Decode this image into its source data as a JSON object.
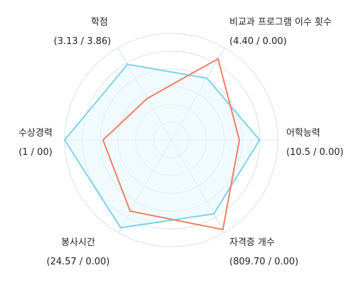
{
  "chart_data": {
    "type": "radar",
    "axes": [
      {
        "name": "학점",
        "value_label": "(3.13 / 3.86)"
      },
      {
        "name": "비교과 프로그램 이수 횟수",
        "value_label": "(4.40 / 0.00)"
      },
      {
        "name": "어학능력",
        "value_label": "(10.5 / 0.00)"
      },
      {
        "name": "자격증 개수",
        "value_label": "(809.70 / 0.00)"
      },
      {
        "name": "봉사시간",
        "value_label": "(24.57 / 0.00)"
      },
      {
        "name": "수상경력",
        "value_label": "(1 / 00)"
      }
    ],
    "r_max": 1,
    "grid_rings": 6,
    "series": [
      {
        "values": [
          0.82,
          0.67,
          0.83,
          0.8,
          0.95,
          1.0
        ],
        "color": "#7dd3ea",
        "fill": "#e8f6fb"
      },
      {
        "values": [
          0.45,
          0.88,
          0.64,
          0.97,
          0.77,
          0.64
        ],
        "color": "#ec8067",
        "fill": "none"
      }
    ]
  }
}
